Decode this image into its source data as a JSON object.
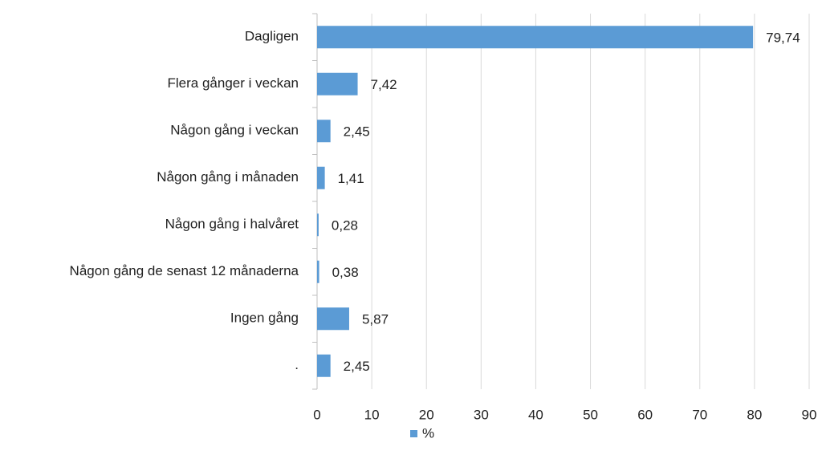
{
  "chart_data": {
    "type": "bar",
    "orientation": "horizontal",
    "categories": [
      "Dagligen",
      "Flera gånger i veckan",
      "Någon gång i veckan",
      "Någon gång i månaden",
      "Någon gång i halvåret",
      "Någon gång de senast 12 månaderna",
      "Ingen gång",
      "."
    ],
    "series": [
      {
        "name": "%",
        "color": "#5b9bd5",
        "values": [
          79.74,
          7.42,
          2.45,
          1.41,
          0.28,
          0.38,
          5.87,
          2.45
        ],
        "value_labels": [
          "79,74",
          "7,42",
          "2,45",
          "1,41",
          "0,28",
          "0,38",
          "5,87",
          "2,45"
        ]
      }
    ],
    "xlim": [
      0,
      90
    ],
    "xticks": [
      0,
      10,
      20,
      30,
      40,
      50,
      60,
      70,
      80,
      90
    ],
    "grid": true,
    "legend": "bottom"
  }
}
